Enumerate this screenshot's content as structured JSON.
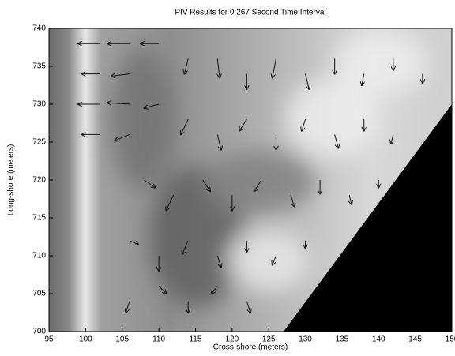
{
  "chart_data": {
    "type": "quiver",
    "title": "PIV  Results for 0.267 Second Time Interval",
    "xlabel": "Cross-shore (meters)",
    "ylabel": "Long-shore (meters)",
    "xlim": [
      95,
      150
    ],
    "ylim": [
      700,
      740
    ],
    "xticks": [
      95,
      100,
      105,
      110,
      115,
      120,
      125,
      130,
      135,
      140,
      145,
      150
    ],
    "yticks": [
      700,
      705,
      710,
      715,
      720,
      725,
      730,
      735,
      740
    ],
    "color": "#111111",
    "x": [
      102,
      106,
      110,
      102,
      106,
      102,
      106,
      110,
      102,
      106,
      114,
      118,
      122,
      126,
      130,
      134,
      138,
      142,
      146,
      114,
      118,
      122,
      126,
      130,
      134,
      138,
      142,
      108,
      112,
      116,
      120,
      124,
      128,
      132,
      136,
      140,
      106,
      110,
      114,
      118,
      122,
      126,
      130,
      106,
      110,
      114,
      118,
      122
    ],
    "y": [
      738,
      738,
      738,
      734,
      734,
      730,
      730,
      730,
      726,
      726,
      736,
      736,
      734,
      736,
      734,
      736,
      734,
      736,
      734,
      728,
      726,
      728,
      726,
      728,
      726,
      728,
      726,
      720,
      718,
      720,
      718,
      720,
      718,
      720,
      718,
      720,
      712,
      710,
      712,
      710,
      712,
      710,
      712,
      704,
      706,
      704,
      706,
      704
    ],
    "u": [
      -3,
      -3,
      -2.5,
      -2.5,
      -2.5,
      -3,
      -3,
      -2,
      -2.5,
      -2,
      -0.5,
      0.3,
      0,
      -0.5,
      0.5,
      0,
      -0.3,
      0,
      0,
      -1,
      0.5,
      -1,
      0,
      -0.5,
      0.5,
      0,
      -0.3,
      1.5,
      -1,
      1,
      0,
      -1,
      0.5,
      0,
      0.3,
      0,
      1.2,
      0,
      -0.8,
      0.5,
      0,
      -0.5,
      0,
      -0.5,
      1,
      0,
      -0.8,
      0.5
    ],
    "v": [
      0,
      0,
      0,
      0,
      -0.3,
      0,
      0.2,
      -0.5,
      0,
      -0.8,
      -2,
      -2.5,
      -2,
      -2.5,
      -2,
      -2,
      -1.5,
      -1.5,
      -1.2,
      -2,
      -2,
      -1.5,
      -2,
      -1.5,
      -1.8,
      -1.5,
      -1.2,
      -1,
      -2,
      -1.5,
      -2,
      -1.5,
      -1.5,
      -1.8,
      -1.2,
      -1,
      -0.5,
      -2,
      -1.8,
      -1.5,
      -1.5,
      -1.2,
      -1,
      -1.5,
      -1,
      -1.5,
      -1,
      -1.5
    ]
  }
}
